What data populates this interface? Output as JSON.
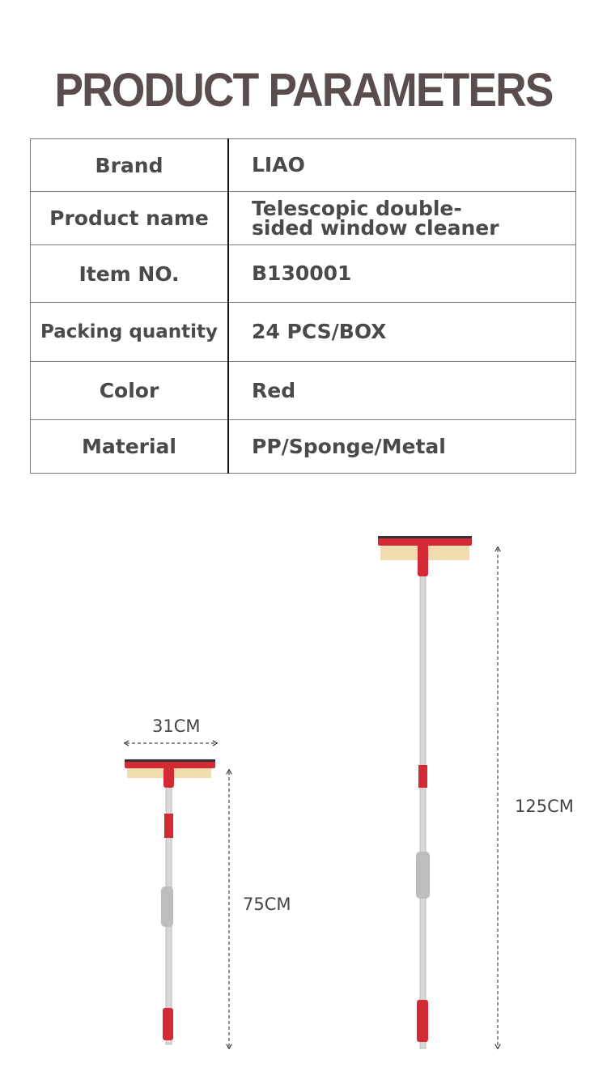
{
  "title": "PRODUCT PARAMETERS",
  "parameters": [
    {
      "key": "Brand",
      "value": "LIAO"
    },
    {
      "key": "Product name",
      "value": "Telescopic double-sided window cleaner"
    },
    {
      "key": "Item NO.",
      "value": "B130001"
    },
    {
      "key": "Packing quantity",
      "value": "24 PCS/BOX"
    },
    {
      "key": "Color",
      "value": "Red"
    },
    {
      "key": "Material",
      "value": "PP/Sponge/Metal"
    }
  ],
  "dimensions": {
    "head_width": "31CM",
    "collapsed_length": "75CM",
    "extended_length": "125CM"
  },
  "colors": {
    "title": "#5a4d4d",
    "product_red": "#d42a35"
  }
}
